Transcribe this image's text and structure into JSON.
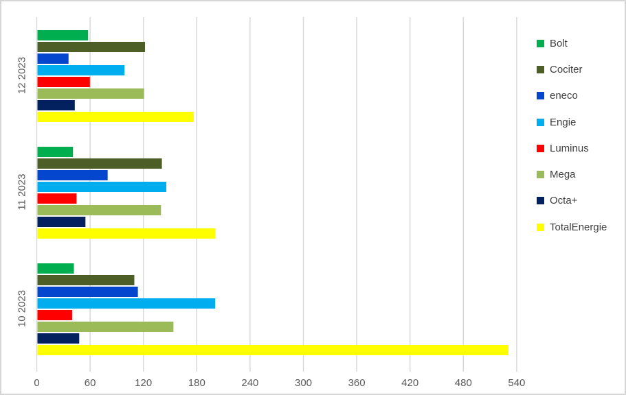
{
  "chart_data": {
    "type": "bar",
    "orientation": "horizontal",
    "title": "",
    "categories": [
      "12 2023",
      "11 2023",
      "10 2023"
    ],
    "series": [
      {
        "name": "Bolt",
        "color": "#00ad4f",
        "values": [
          57,
          40,
          41
        ]
      },
      {
        "name": "Cociter",
        "color": "#4d5f27",
        "values": [
          121,
          140,
          109
        ]
      },
      {
        "name": "eneco",
        "color": "#0447ce",
        "values": [
          35,
          79,
          113
        ]
      },
      {
        "name": "Engie",
        "color": "#00aeef",
        "values": [
          98,
          145,
          200
        ]
      },
      {
        "name": "Luminus",
        "color": "#fe0000",
        "values": [
          59,
          44,
          39
        ]
      },
      {
        "name": "Mega",
        "color": "#9bbb59",
        "values": [
          120,
          139,
          153
        ]
      },
      {
        "name": "Octa+",
        "color": "#03205f",
        "values": [
          42,
          54,
          47
        ]
      },
      {
        "name": "TotalEnergie",
        "color": "#fefe00",
        "values": [
          176,
          200,
          530
        ]
      }
    ],
    "x_axis": {
      "min": 0,
      "max": 540,
      "step": 60,
      "ticks": [
        0,
        60,
        120,
        180,
        240,
        300,
        360,
        420,
        480,
        540
      ]
    },
    "grid": true,
    "legend_position": "right",
    "styles": {
      "gridline_color": "#d9d9d9",
      "axis_label_color": "#595959",
      "legend_text_color": "#404040",
      "background": "#ffffff",
      "border_color": "#d6d6d6"
    }
  }
}
